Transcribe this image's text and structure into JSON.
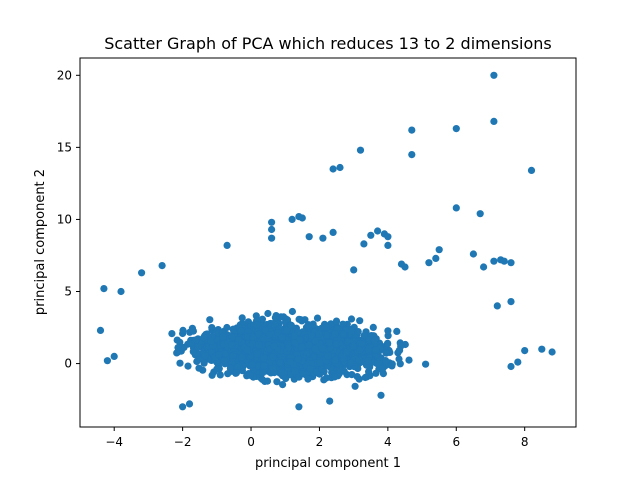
{
  "chart_data": {
    "type": "scatter",
    "title": "Scatter Graph of PCA which reduces 13 to 2 dimensions",
    "xlabel": "principal component 1",
    "ylabel": "principal component 2",
    "xlim": [
      -5.0,
      9.5
    ],
    "ylim": [
      -4.4,
      21.2
    ],
    "xticks": [
      -4,
      -2,
      0,
      2,
      4,
      6,
      8
    ],
    "yticks": [
      0,
      5,
      10,
      15,
      20
    ],
    "xtick_labels": [
      "−4",
      "−2",
      "0",
      "2",
      "4",
      "6",
      "8"
    ],
    "ytick_labels": [
      "0",
      "5",
      "10",
      "15",
      "20"
    ],
    "grid": false,
    "marker_color": "#1f77b4",
    "dense_cluster": {
      "x_range": [
        -4.3,
        7.8
      ],
      "y_range": [
        -3.2,
        6.8
      ],
      "center": [
        1.2,
        1.0
      ]
    },
    "points": [
      [
        7.1,
        20.0
      ],
      [
        4.7,
        16.2
      ],
      [
        6.0,
        16.3
      ],
      [
        7.1,
        16.8
      ],
      [
        3.2,
        14.8
      ],
      [
        4.7,
        14.5
      ],
      [
        2.4,
        13.5
      ],
      [
        2.6,
        13.6
      ],
      [
        8.2,
        13.4
      ],
      [
        6.0,
        10.8
      ],
      [
        6.7,
        10.4
      ],
      [
        1.4,
        10.2
      ],
      [
        1.5,
        10.1
      ],
      [
        1.2,
        10.0
      ],
      [
        0.6,
        9.8
      ],
      [
        0.6,
        9.3
      ],
      [
        0.6,
        8.7
      ],
      [
        2.4,
        9.1
      ],
      [
        1.7,
        8.8
      ],
      [
        2.1,
        8.7
      ],
      [
        3.7,
        9.2
      ],
      [
        3.9,
        9.0
      ],
      [
        4.0,
        8.8
      ],
      [
        3.5,
        8.9
      ],
      [
        3.3,
        8.3
      ],
      [
        -0.7,
        8.2
      ],
      [
        4.0,
        8.2
      ],
      [
        5.5,
        7.9
      ],
      [
        5.4,
        7.3
      ],
      [
        6.5,
        7.6
      ],
      [
        7.1,
        7.1
      ],
      [
        7.3,
        7.2
      ],
      [
        7.4,
        7.1
      ],
      [
        7.6,
        7.0
      ],
      [
        6.8,
        6.7
      ],
      [
        5.2,
        7.0
      ],
      [
        4.4,
        6.9
      ],
      [
        4.5,
        6.7
      ],
      [
        3.0,
        6.5
      ],
      [
        -4.3,
        5.2
      ],
      [
        -3.8,
        5.0
      ],
      [
        -3.2,
        6.3
      ],
      [
        -2.6,
        6.8
      ],
      [
        7.6,
        4.3
      ],
      [
        7.2,
        4.0
      ],
      [
        8.5,
        1.0
      ],
      [
        8.8,
        0.8
      ],
      [
        8.0,
        0.9
      ],
      [
        -4.4,
        2.3
      ],
      [
        -4.2,
        0.2
      ],
      [
        -4.0,
        0.5
      ],
      [
        7.8,
        0.1
      ],
      [
        7.6,
        -0.2
      ],
      [
        3.8,
        -2.2
      ],
      [
        -1.8,
        -2.8
      ],
      [
        -2.0,
        -3.0
      ],
      [
        1.4,
        -3.0
      ],
      [
        2.3,
        -2.6
      ]
    ]
  }
}
